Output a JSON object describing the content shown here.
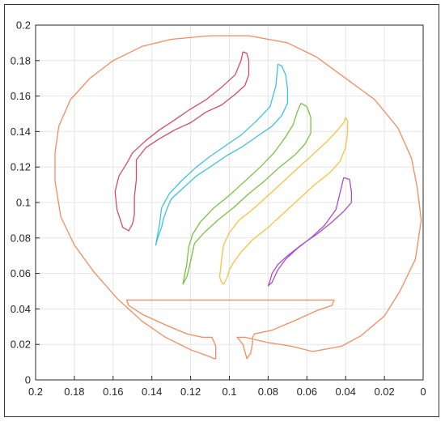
{
  "chart_data": {
    "type": "line",
    "title": "",
    "xlabel": "",
    "ylabel": "",
    "xlim": [
      0.2,
      0
    ],
    "ylim": [
      0,
      0.2
    ],
    "x_reversed": true,
    "grid": true,
    "x_ticks": [
      "0.2",
      "0.18",
      "0.16",
      "0.14",
      "0.12",
      "0.1",
      "0.08",
      "0.06",
      "0.04",
      "0.02",
      "0"
    ],
    "y_ticks": [
      "0",
      "0.02",
      "0.04",
      "0.06",
      "0.08",
      "0.1",
      "0.12",
      "0.14",
      "0.16",
      "0.18",
      "0.2"
    ],
    "series": [
      {
        "color": "#f08c60",
        "x": [
          0.09,
          0.11,
          0.13,
          0.145,
          0.16,
          0.172,
          0.182,
          0.188,
          0.19,
          0.19,
          0.187,
          0.18,
          0.17,
          0.158,
          0.145,
          0.133,
          0.12,
          0.11,
          0.108,
          0.107,
          0.107,
          0.109,
          0.112,
          0.114,
          0.122,
          0.133,
          0.145,
          0.152,
          0.153,
          0.046,
          0.047,
          0.055,
          0.065,
          0.078,
          0.087,
          0.088,
          0.088,
          0.089,
          0.091,
          0.093,
          0.096,
          0.092,
          0.08,
          0.068,
          0.057,
          0.042,
          0.032,
          0.02,
          0.012,
          0.004,
          0.001,
          0.003,
          0.006,
          0.013,
          0.025,
          0.04,
          0.055,
          0.07,
          0.09
        ],
        "y": [
          0.194,
          0.194,
          0.192,
          0.188,
          0.18,
          0.17,
          0.158,
          0.143,
          0.128,
          0.112,
          0.092,
          0.076,
          0.061,
          0.046,
          0.033,
          0.024,
          0.017,
          0.013,
          0.012,
          0.012,
          0.019,
          0.024,
          0.024,
          0.024,
          0.026,
          0.031,
          0.037,
          0.042,
          0.045,
          0.045,
          0.042,
          0.039,
          0.034,
          0.028,
          0.026,
          0.024,
          0.021,
          0.015,
          0.012,
          0.02,
          0.024,
          0.024,
          0.021,
          0.019,
          0.016,
          0.019,
          0.025,
          0.036,
          0.05,
          0.068,
          0.09,
          0.108,
          0.125,
          0.142,
          0.158,
          0.17,
          0.182,
          0.19,
          0.194
        ]
      },
      {
        "color": "#d24b6e",
        "x": [
          0.093,
          0.091,
          0.09,
          0.09,
          0.092,
          0.097,
          0.104,
          0.112,
          0.12,
          0.128,
          0.136,
          0.143,
          0.148,
          0.148,
          0.149,
          0.149,
          0.15,
          0.152,
          0.155,
          0.158,
          0.159,
          0.157,
          0.153,
          0.15,
          0.143,
          0.136,
          0.129,
          0.121,
          0.112,
          0.104,
          0.097,
          0.094,
          0.093
        ],
        "y": [
          0.185,
          0.184,
          0.18,
          0.172,
          0.166,
          0.161,
          0.155,
          0.151,
          0.145,
          0.141,
          0.136,
          0.131,
          0.124,
          0.113,
          0.103,
          0.093,
          0.088,
          0.084,
          0.086,
          0.096,
          0.106,
          0.115,
          0.122,
          0.128,
          0.135,
          0.141,
          0.146,
          0.152,
          0.158,
          0.165,
          0.172,
          0.18,
          0.185
        ]
      },
      {
        "color": "#3fc1e1",
        "x": [
          0.075,
          0.073,
          0.071,
          0.07,
          0.07,
          0.073,
          0.078,
          0.086,
          0.094,
          0.102,
          0.11,
          0.117,
          0.124,
          0.13,
          0.132,
          0.134,
          0.135,
          0.137,
          0.138,
          0.136,
          0.135,
          0.131,
          0.124,
          0.117,
          0.11,
          0.102,
          0.094,
          0.086,
          0.079,
          0.076,
          0.075
        ],
        "y": [
          0.178,
          0.177,
          0.172,
          0.164,
          0.156,
          0.149,
          0.143,
          0.137,
          0.131,
          0.126,
          0.12,
          0.115,
          0.108,
          0.102,
          0.097,
          0.091,
          0.086,
          0.08,
          0.076,
          0.088,
          0.097,
          0.105,
          0.113,
          0.12,
          0.126,
          0.132,
          0.138,
          0.146,
          0.154,
          0.166,
          0.178
        ]
      },
      {
        "color": "#7ac143",
        "x": [
          0.063,
          0.06,
          0.058,
          0.058,
          0.061,
          0.066,
          0.074,
          0.082,
          0.09,
          0.098,
          0.106,
          0.113,
          0.118,
          0.119,
          0.12,
          0.121,
          0.122,
          0.123,
          0.124,
          0.122,
          0.121,
          0.119,
          0.115,
          0.108,
          0.1,
          0.092,
          0.084,
          0.077,
          0.071,
          0.067,
          0.065,
          0.063
        ],
        "y": [
          0.156,
          0.154,
          0.148,
          0.139,
          0.133,
          0.127,
          0.12,
          0.112,
          0.105,
          0.097,
          0.09,
          0.083,
          0.077,
          0.072,
          0.067,
          0.062,
          0.058,
          0.056,
          0.054,
          0.065,
          0.075,
          0.082,
          0.089,
          0.097,
          0.104,
          0.112,
          0.12,
          0.128,
          0.137,
          0.144,
          0.151,
          0.156
        ]
      },
      {
        "color": "#f5c242",
        "x": [
          0.04,
          0.039,
          0.039,
          0.04,
          0.043,
          0.048,
          0.056,
          0.064,
          0.072,
          0.08,
          0.088,
          0.094,
          0.098,
          0.1,
          0.101,
          0.102,
          0.103,
          0.104,
          0.105,
          0.104,
          0.103,
          0.1,
          0.095,
          0.087,
          0.079,
          0.071,
          0.063,
          0.055,
          0.049,
          0.044,
          0.041,
          0.04
        ],
        "y": [
          0.148,
          0.146,
          0.14,
          0.131,
          0.123,
          0.117,
          0.11,
          0.102,
          0.094,
          0.086,
          0.079,
          0.072,
          0.066,
          0.062,
          0.058,
          0.056,
          0.054,
          0.055,
          0.058,
          0.068,
          0.076,
          0.083,
          0.09,
          0.097,
          0.105,
          0.113,
          0.121,
          0.129,
          0.135,
          0.141,
          0.145,
          0.148
        ]
      },
      {
        "color": "#a64fc7",
        "x": [
          0.041,
          0.038,
          0.037,
          0.037,
          0.041,
          0.047,
          0.055,
          0.063,
          0.07,
          0.075,
          0.078,
          0.079,
          0.08,
          0.078,
          0.075,
          0.071,
          0.065,
          0.058,
          0.051,
          0.045,
          0.041
        ],
        "y": [
          0.114,
          0.113,
          0.106,
          0.1,
          0.095,
          0.089,
          0.082,
          0.076,
          0.07,
          0.065,
          0.06,
          0.056,
          0.053,
          0.055,
          0.062,
          0.068,
          0.074,
          0.08,
          0.087,
          0.096,
          0.114
        ]
      }
    ]
  }
}
